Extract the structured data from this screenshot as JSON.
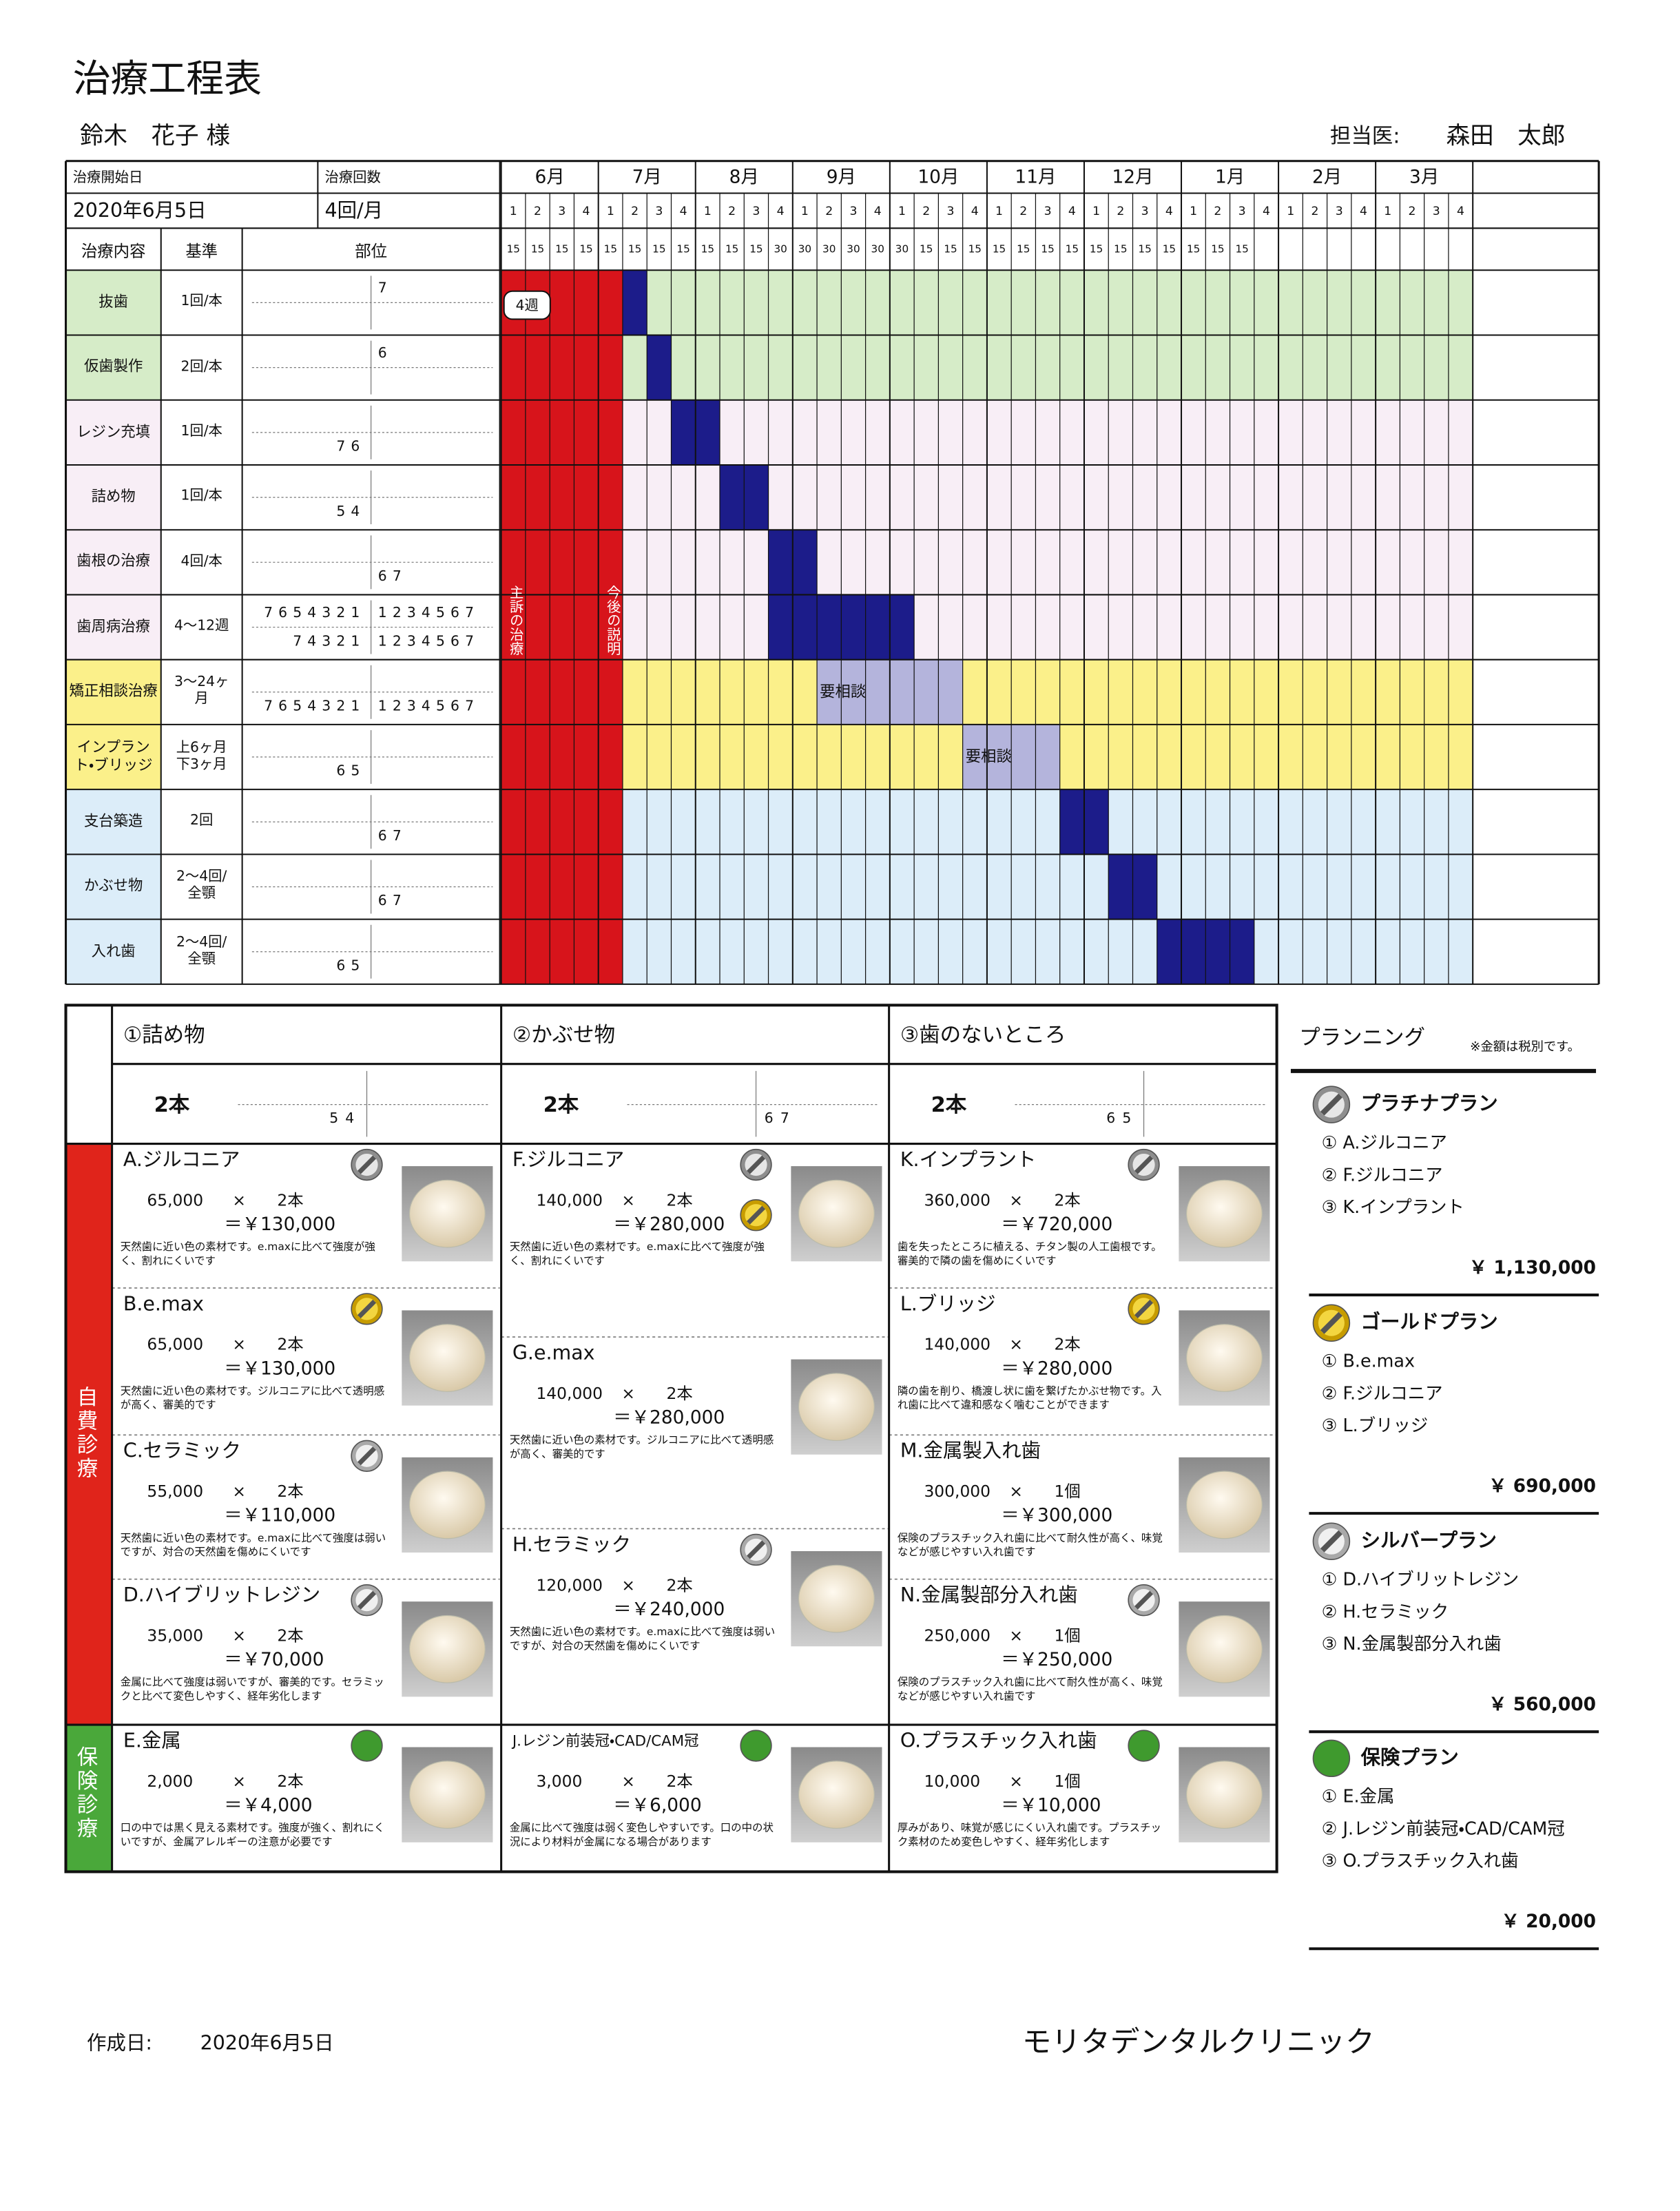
{
  "header": {
    "title": "治療工程表",
    "patient": "鈴木　花子 様",
    "doctor_label": "担当医:",
    "doctor": "森田　太郎"
  },
  "schedule": {
    "start_label": "治療開始日",
    "start_date": "2020年6月5日",
    "visits_label": "治療回数",
    "visits": "4回/月",
    "months": [
      "6月",
      "7月",
      "8月",
      "9月",
      "10月",
      "11月",
      "12月",
      "1月",
      "2月",
      "3月"
    ],
    "weeks": [
      "1",
      "2",
      "3",
      "4"
    ],
    "intervals": [
      15,
      15,
      15,
      15,
      15,
      15,
      15,
      15,
      15,
      15,
      15,
      30,
      30,
      30,
      30,
      30,
      30,
      15,
      15,
      15,
      15,
      15,
      15,
      15,
      15,
      15,
      15,
      15,
      15,
      15,
      15
    ],
    "columns": [
      "治療内容",
      "基準",
      "部位"
    ],
    "initial_note": "4週",
    "initial_weeks": [
      0,
      1,
      2,
      3,
      4
    ],
    "initial_labels": [
      "主訴の治療",
      "今後の説明"
    ],
    "rows": [
      {
        "name": "抜歯",
        "standard": "1回/本",
        "teeth": {
          "ur": "7"
        },
        "color": "#d6ecc8",
        "weeks": [
          5
        ]
      },
      {
        "name": "仮歯製作",
        "standard": "2回/本",
        "teeth": {
          "ur": "6"
        },
        "color": "#d6ecc8",
        "weeks": [
          6
        ]
      },
      {
        "name": "レジン充填",
        "standard": "1回/本",
        "teeth": {
          "ll": "76"
        },
        "color": "#f8eef6",
        "weeks": [
          7,
          8
        ]
      },
      {
        "name": "詰め物",
        "standard": "1回/本",
        "teeth": {
          "ll": "54"
        },
        "color": "#f8eef6",
        "weeks": [
          9,
          10
        ]
      },
      {
        "name": "歯根の治療",
        "standard": "4回/本",
        "teeth": {
          "lr": "67"
        },
        "color": "#f8eef6",
        "weeks": [
          11,
          12
        ]
      },
      {
        "name": "歯周病治療",
        "standard": "4〜12週",
        "teeth": {
          "ul": "7654321",
          "ur": "1234567",
          "ll": "74321",
          "lr": "1234567"
        },
        "color": "#f8eef6",
        "weeks": [
          11,
          12,
          13,
          14,
          15,
          16
        ]
      },
      {
        "name": "矯正相談治療",
        "standard": "3〜24ヶ月",
        "teeth": {
          "ll": "7654321",
          "lr": "1234567"
        },
        "color": "#fbf08a",
        "consult": "要相談",
        "consult_weeks": [
          13,
          14,
          15,
          16,
          17,
          18
        ]
      },
      {
        "name": "インプラント・ブリッジ",
        "standard": "上6ヶ月下3ヶ月",
        "teeth": {
          "ll": "65"
        },
        "color": "#fbf08a",
        "consult": "要相談",
        "consult_weeks": [
          19,
          20,
          21,
          22
        ]
      },
      {
        "name": "支台築造",
        "standard": "2回",
        "teeth": {
          "lr": "67"
        },
        "color": "#dcedf9",
        "weeks": [
          23,
          24
        ]
      },
      {
        "name": "かぶせ物",
        "standard": "2〜4回/全顎",
        "teeth": {
          "lr": "67"
        },
        "color": "#dcedf9",
        "weeks": [
          25,
          26
        ]
      },
      {
        "name": "入れ歯",
        "standard": "2〜4回/全顎",
        "teeth": {
          "ll": "65"
        },
        "color": "#dcedf9",
        "weeks": [
          27,
          28,
          29,
          30
        ]
      }
    ]
  },
  "catalog": {
    "self_pay": "自費診療",
    "insurance": "保険診療",
    "times_sign": "×",
    "categories": [
      {
        "title": "①詰め物",
        "count": "2本",
        "teeth": {
          "ll": "54"
        },
        "items": [
          {
            "name": "A.ジルコニア",
            "price": "65,000",
            "qty": "2本",
            "total": "＝￥130,000",
            "desc": "天然歯に近い色の素材です。e.maxに比べて強度が強く、割れにくいです",
            "medals": [
              "platinum"
            ]
          },
          {
            "name": "B.e.max",
            "price": "65,000",
            "qty": "2本",
            "total": "＝￥130,000",
            "desc": "天然歯に近い色の素材です。ジルコニアに比べて透明感が高く、審美的です",
            "medals": [
              "gold"
            ]
          },
          {
            "name": "C.セラミック",
            "price": "55,000",
            "qty": "2本",
            "total": "＝￥110,000",
            "desc": "天然歯に近い色の素材です。e.maxに比べて強度は弱いですが、対合の天然歯を傷めにくいです",
            "medals": [
              "silver"
            ]
          },
          {
            "name": "D.ハイブリットレジン",
            "price": "35,000",
            "qty": "2本",
            "total": "＝￥70,000",
            "desc": "金属に比べて強度は弱いですが、審美的です。セラミックと比べて変色しやすく、経年劣化します",
            "medals": [
              "silver"
            ]
          },
          {
            "name": "E.金属",
            "price": "2,000",
            "qty": "2本",
            "total": "＝￥4,000",
            "desc": "口の中では黒く見える素材です。強度が強く、割れにくいですが、金属アレルギーの注意が必要です",
            "medals": [
              "green"
            ]
          }
        ]
      },
      {
        "title": "②かぶせ物",
        "count": "2本",
        "teeth": {
          "lr": "67"
        },
        "items": [
          {
            "name": "F.ジルコニア",
            "price": "140,000",
            "qty": "2本",
            "total": "＝￥280,000",
            "desc": "天然歯に近い色の素材です。e.maxに比べて強度が強く、割れにくいです",
            "medals": [
              "platinum",
              "gold"
            ]
          },
          {
            "name": "G.e.max",
            "price": "140,000",
            "qty": "2本",
            "total": "＝￥280,000",
            "desc": "天然歯に近い色の素材です。ジルコニアに比べて透明感が高く、審美的です",
            "medals": []
          },
          {
            "name": "H.セラミック",
            "price": "120,000",
            "qty": "2本",
            "total": "＝￥240,000",
            "desc": "天然歯に近い色の素材です。e.maxに比べて強度は弱いですが、対合の天然歯を傷めにくいです",
            "medals": [
              "silver"
            ]
          },
          {
            "name": "J.レジン前装冠・CAD/CAM冠",
            "price": "3,000",
            "qty": "2本",
            "total": "＝￥6,000",
            "desc": "金属に比べて強度は弱く変色しやすいです。口の中の状況により材料が金属になる場合があります",
            "medals": [
              "green"
            ]
          }
        ]
      },
      {
        "title": "③歯のないところ",
        "count": "2本",
        "teeth": {
          "ll": "65"
        },
        "items": [
          {
            "name": "K.インプラント",
            "price": "360,000",
            "qty": "2本",
            "total": "＝￥720,000",
            "desc": "歯を失ったところに植える、チタン製の人工歯根です。審美的で隣の歯を傷めにくいです",
            "medals": [
              "platinum"
            ]
          },
          {
            "name": "L.ブリッジ",
            "price": "140,000",
            "qty": "2本",
            "total": "＝￥280,000",
            "desc": "隣の歯を削り、橋渡し状に歯を繋げたかぶせ物です。入れ歯に比べて違和感なく噛むことができます",
            "medals": [
              "gold"
            ]
          },
          {
            "name": "M.金属製入れ歯",
            "price": "300,000",
            "qty": "1個",
            "total": "＝￥300,000",
            "desc": "保険のプラスチック入れ歯に比べて耐久性が高く、味覚などが感じやすい入れ歯です",
            "medals": []
          },
          {
            "name": "N.金属製部分入れ歯",
            "price": "250,000",
            "qty": "1個",
            "total": "＝￥250,000",
            "desc": "保険のプラスチック入れ歯に比べて耐久性が高く、味覚などが感じやすい入れ歯です",
            "medals": [
              "silver"
            ]
          },
          {
            "name": "O.プラスチック入れ歯",
            "price": "10,000",
            "qty": "1個",
            "total": "＝￥10,000",
            "desc": "厚みがあり、味覚が感じにくい入れ歯です。プラスチック素材のため変色しやすく、経年劣化します",
            "medals": [
              "green"
            ]
          }
        ]
      }
    ]
  },
  "planning": {
    "title": "プランニング",
    "note": "※金額は税別です。",
    "plans": [
      {
        "name": "プラチナプラン",
        "medal": "platinum",
        "items": [
          "① A.ジルコニア",
          "② F.ジルコニア",
          "③ K.インプラント"
        ],
        "total": "￥ 1,130,000"
      },
      {
        "name": "ゴールドプラン",
        "medal": "gold",
        "items": [
          "① B.e.max",
          "② F.ジルコニア",
          "③ L.ブリッジ"
        ],
        "total": "￥ 690,000"
      },
      {
        "name": "シルバープラン",
        "medal": "silver",
        "items": [
          "① D.ハイブリットレジン",
          "② H.セラミック",
          "③ N.金属製部分入れ歯"
        ],
        "total": "￥ 560,000"
      },
      {
        "name": "保険プラン",
        "medal": "green",
        "items": [
          "① E.金属",
          "② J.レジン前装冠・CAD/CAM冠",
          "③ O.プラスチック入れ歯"
        ],
        "total": "￥ 20,000"
      }
    ]
  },
  "footer": {
    "created_label": "作成日:",
    "created_date": "2020年6月5日",
    "clinic": "モリタデンタルクリニック"
  }
}
